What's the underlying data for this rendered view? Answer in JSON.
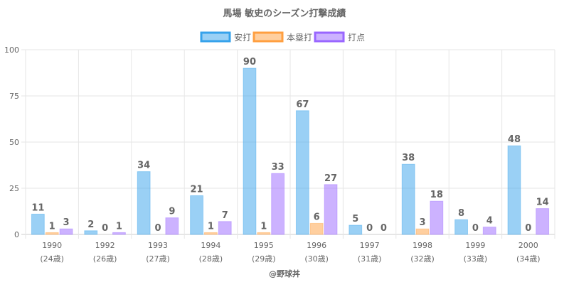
{
  "chart_data": {
    "type": "bar",
    "title": "馬場 敏史のシーズン打撃成績",
    "categories": [
      "1990",
      "1992",
      "1993",
      "1994",
      "1995",
      "1996",
      "1997",
      "1998",
      "1999",
      "2000"
    ],
    "category_sublabels": [
      "(24歳)",
      "(26歳)",
      "(27歳)",
      "(28歳)",
      "(29歳)",
      "(30歳)",
      "(31歳)",
      "(32歳)",
      "(33歳)",
      "(34歳)"
    ],
    "series": [
      {
        "name": "安打",
        "values": [
          11,
          2,
          34,
          21,
          90,
          67,
          5,
          38,
          8,
          48
        ],
        "color": "#36a2eb"
      },
      {
        "name": "本塁打",
        "values": [
          1,
          0,
          0,
          1,
          1,
          6,
          0,
          3,
          0,
          0
        ],
        "color": "#ff9f40"
      },
      {
        "name": "打点",
        "values": [
          3,
          1,
          9,
          7,
          33,
          27,
          0,
          18,
          4,
          14
        ],
        "color": "#9966ff"
      }
    ],
    "ylim": [
      0,
      100
    ],
    "yticks": [
      0,
      25,
      50,
      75,
      100
    ],
    "grid": true,
    "legend": "top",
    "credit": "@野球丼"
  }
}
